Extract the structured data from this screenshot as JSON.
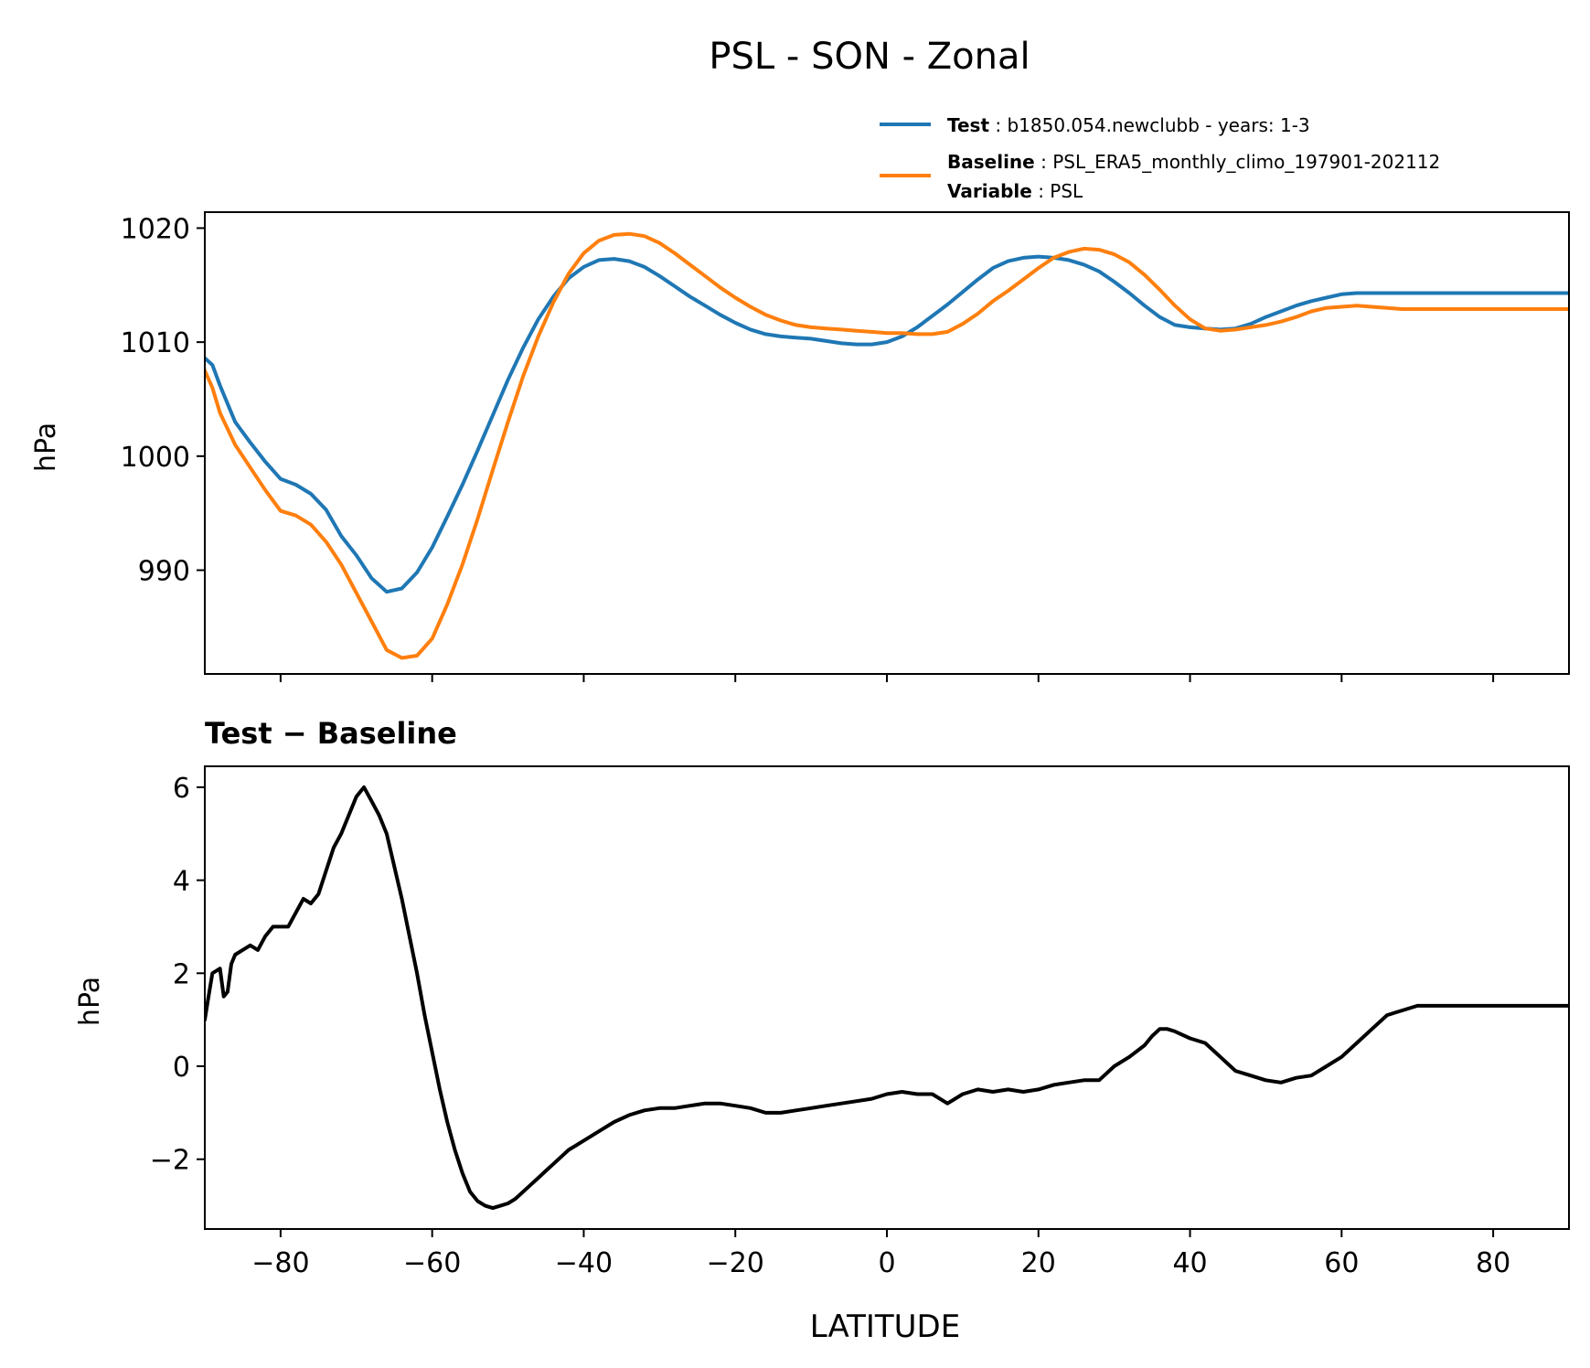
{
  "chart_data": [
    {
      "type": "line",
      "title": "PSL - SON - Zonal",
      "xlabel": "",
      "ylabel": "hPa",
      "xlim": [
        -90,
        90
      ],
      "ylim": [
        980.9,
        1021.4
      ],
      "yticks": [
        990,
        1000,
        1010,
        1020
      ],
      "xticks": [
        -80,
        -60,
        -40,
        -20,
        0,
        20,
        40,
        60,
        80
      ],
      "legend": {
        "placement": "top-right (above axes)",
        "entries": [
          {
            "bold": "Test",
            "sep": " : ",
            "text": "b1850.054.newclubb - years: 1-3",
            "color": "#1f77b4"
          },
          {
            "bold": "Baseline",
            "sep": " : ",
            "text": "PSL_ERA5_monthly_climo_197901-202112",
            "color": "#ff7f0e"
          },
          {
            "bold": "Variable",
            "sep": " : ",
            "text": "PSL"
          }
        ]
      },
      "series": [
        {
          "name": "Test",
          "color": "#1f77b4",
          "x": [
            -90,
            -89,
            -88,
            -86,
            -84,
            -82,
            -80,
            -78,
            -76,
            -74,
            -72,
            -70,
            -68,
            -66,
            -64,
            -62,
            -60,
            -58,
            -56,
            -54,
            -52,
            -50,
            -48,
            -46,
            -44,
            -42,
            -40,
            -38,
            -36,
            -34,
            -32,
            -30,
            -28,
            -26,
            -24,
            -22,
            -20,
            -18,
            -16,
            -14,
            -12,
            -10,
            -8,
            -6,
            -4,
            -2,
            0,
            2,
            4,
            6,
            8,
            10,
            12,
            14,
            16,
            18,
            20,
            22,
            24,
            26,
            28,
            30,
            32,
            34,
            36,
            38,
            40,
            42,
            44,
            46,
            48,
            50,
            52,
            54,
            56,
            58,
            60,
            62,
            64,
            66,
            68,
            70,
            72,
            74,
            76,
            78,
            80,
            82,
            84,
            86,
            88,
            90
          ],
          "y": [
            1008.6,
            1008.0,
            1006.2,
            1003.0,
            1001.2,
            999.5,
            998.0,
            997.5,
            996.7,
            995.3,
            993.0,
            991.3,
            989.3,
            988.1,
            988.4,
            989.8,
            992.0,
            994.7,
            997.5,
            1000.5,
            1003.6,
            1006.7,
            1009.5,
            1012.0,
            1014.0,
            1015.6,
            1016.6,
            1017.2,
            1017.3,
            1017.1,
            1016.6,
            1015.8,
            1014.9,
            1014.0,
            1013.2,
            1012.4,
            1011.7,
            1011.1,
            1010.7,
            1010.5,
            1010.4,
            1010.3,
            1010.1,
            1009.9,
            1009.8,
            1009.8,
            1010.0,
            1010.5,
            1011.3,
            1012.3,
            1013.3,
            1014.4,
            1015.5,
            1016.5,
            1017.1,
            1017.4,
            1017.5,
            1017.4,
            1017.2,
            1016.8,
            1016.2,
            1015.3,
            1014.3,
            1013.2,
            1012.2,
            1011.5,
            1011.3,
            1011.2,
            1011.1,
            1011.2,
            1011.6,
            1012.2,
            1012.7,
            1013.2,
            1013.6,
            1013.9,
            1014.2,
            1014.3,
            1014.3,
            1014.3,
            1014.3,
            1014.3,
            1014.3,
            1014.3,
            1014.3,
            1014.3,
            1014.3,
            1014.3,
            1014.3,
            1014.3,
            1014.3,
            1014.3
          ]
        },
        {
          "name": "Baseline",
          "color": "#ff7f0e",
          "x": [
            -90,
            -89,
            -88,
            -86,
            -84,
            -82,
            -80,
            -78,
            -76,
            -74,
            -72,
            -70,
            -68,
            -66,
            -64,
            -62,
            -60,
            -58,
            -56,
            -54,
            -52,
            -50,
            -48,
            -46,
            -44,
            -42,
            -40,
            -38,
            -36,
            -34,
            -32,
            -30,
            -28,
            -26,
            -24,
            -22,
            -20,
            -18,
            -16,
            -14,
            -12,
            -10,
            -8,
            -6,
            -4,
            -2,
            0,
            2,
            4,
            6,
            8,
            10,
            12,
            14,
            16,
            18,
            20,
            22,
            24,
            26,
            28,
            30,
            32,
            34,
            36,
            38,
            40,
            42,
            44,
            46,
            48,
            50,
            52,
            54,
            56,
            58,
            60,
            62,
            64,
            66,
            68,
            70,
            72,
            74,
            76,
            78,
            80,
            82,
            84,
            86,
            88,
            90
          ],
          "y": [
            1007.5,
            1006.0,
            1003.8,
            1001.0,
            999.0,
            997.0,
            995.2,
            994.8,
            994.0,
            992.5,
            990.5,
            988.0,
            985.5,
            983.0,
            982.3,
            982.5,
            984.0,
            987.0,
            990.5,
            994.5,
            998.8,
            1003.0,
            1007.0,
            1010.5,
            1013.5,
            1016.0,
            1017.8,
            1018.9,
            1019.4,
            1019.5,
            1019.3,
            1018.7,
            1017.8,
            1016.8,
            1015.8,
            1014.8,
            1013.9,
            1013.1,
            1012.4,
            1011.9,
            1011.5,
            1011.3,
            1011.2,
            1011.1,
            1011.0,
            1010.9,
            1010.8,
            1010.8,
            1010.7,
            1010.7,
            1010.9,
            1011.6,
            1012.5,
            1013.6,
            1014.5,
            1015.5,
            1016.5,
            1017.4,
            1017.9,
            1018.2,
            1018.1,
            1017.7,
            1017.0,
            1015.9,
            1014.6,
            1013.2,
            1012.0,
            1011.2,
            1011.0,
            1011.1,
            1011.3,
            1011.5,
            1011.8,
            1012.2,
            1012.7,
            1013.0,
            1013.1,
            1013.2,
            1013.1,
            1013.0,
            1012.9,
            1012.9,
            1012.9,
            1012.9,
            1012.9,
            1012.9,
            1012.9,
            1012.9,
            1012.9,
            1012.9,
            1012.9,
            1012.9
          ]
        }
      ]
    },
    {
      "type": "line",
      "title": "Test − Baseline",
      "xlabel": "LATITUDE",
      "ylabel": "hPa",
      "xlim": [
        -90,
        90
      ],
      "ylim": [
        -3.5,
        6.45
      ],
      "yticks": [
        -2,
        0,
        2,
        4,
        6
      ],
      "xticks": [
        -80,
        -60,
        -40,
        -20,
        0,
        20,
        40,
        60,
        80
      ],
      "series": [
        {
          "name": "Test − Baseline",
          "color": "#000000",
          "x": [
            -90,
            -89.5,
            -89,
            -88,
            -87.5,
            -87,
            -86.5,
            -86,
            -85,
            -84,
            -83,
            -82,
            -81.5,
            -81,
            -80,
            -79,
            -78,
            -77,
            -76,
            -75,
            -74,
            -73,
            -72,
            -71,
            -70,
            -69,
            -68,
            -67,
            -66,
            -65,
            -64,
            -63,
            -62,
            -61,
            -60,
            -59,
            -58,
            -57,
            -56,
            -55,
            -54,
            -53,
            -52,
            -51,
            -50,
            -49,
            -48,
            -47,
            -46,
            -45,
            -44,
            -43,
            -42,
            -41,
            -40,
            -38,
            -36,
            -34,
            -32,
            -30,
            -28,
            -26,
            -24,
            -22,
            -20,
            -18,
            -16,
            -14,
            -12,
            -10,
            -8,
            -6,
            -4,
            -2,
            0,
            2,
            4,
            6,
            8,
            10,
            12,
            14,
            16,
            18,
            20,
            22,
            24,
            26,
            28,
            30,
            32,
            34,
            35,
            36,
            37,
            38,
            40,
            42,
            44,
            46,
            48,
            50,
            52,
            54,
            56,
            58,
            60,
            62,
            64,
            66,
            68,
            70,
            72,
            74,
            76,
            78,
            80,
            82,
            84,
            86,
            88,
            90
          ],
          "y": [
            1.0,
            1.5,
            2.0,
            2.1,
            1.5,
            1.6,
            2.2,
            2.4,
            2.5,
            2.6,
            2.5,
            2.8,
            2.9,
            3.0,
            3.0,
            3.0,
            3.3,
            3.6,
            3.5,
            3.7,
            4.2,
            4.7,
            5.0,
            5.4,
            5.8,
            6.0,
            5.7,
            5.4,
            5.0,
            4.3,
            3.6,
            2.8,
            2.0,
            1.1,
            0.3,
            -0.5,
            -1.2,
            -1.8,
            -2.3,
            -2.7,
            -2.9,
            -3.0,
            -3.05,
            -3.0,
            -2.95,
            -2.85,
            -2.7,
            -2.55,
            -2.4,
            -2.25,
            -2.1,
            -1.95,
            -1.8,
            -1.7,
            -1.6,
            -1.4,
            -1.2,
            -1.05,
            -0.95,
            -0.9,
            -0.9,
            -0.85,
            -0.8,
            -0.8,
            -0.85,
            -0.9,
            -1.0,
            -1.0,
            -0.95,
            -0.9,
            -0.85,
            -0.8,
            -0.75,
            -0.7,
            -0.6,
            -0.55,
            -0.6,
            -0.6,
            -0.8,
            -0.6,
            -0.5,
            -0.55,
            -0.5,
            -0.55,
            -0.5,
            -0.4,
            -0.35,
            -0.3,
            -0.3,
            0.0,
            0.2,
            0.45,
            0.65,
            0.8,
            0.8,
            0.75,
            0.6,
            0.5,
            0.2,
            -0.1,
            -0.2,
            -0.3,
            -0.35,
            -0.25,
            -0.2,
            0.0,
            0.2,
            0.5,
            0.8,
            1.1,
            1.2,
            1.3,
            1.3,
            1.3,
            1.3,
            1.3,
            1.3,
            1.3,
            1.3,
            1.3,
            1.3,
            1.3
          ]
        }
      ]
    }
  ]
}
